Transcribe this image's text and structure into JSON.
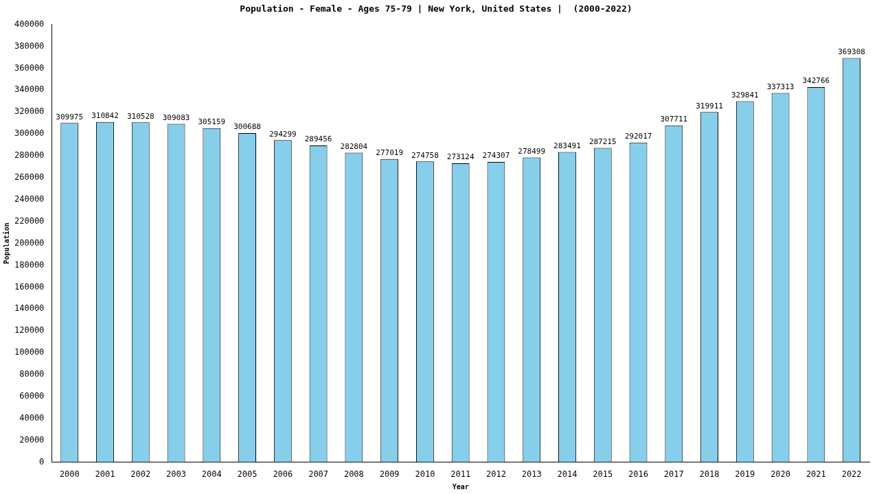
{
  "chart_data": {
    "type": "bar",
    "title": "Population - Female - Ages 75-79 | New York, United States |  (2000-2022)",
    "x_label": "Year",
    "y_label": "Population",
    "categories": [
      "2000",
      "2001",
      "2002",
      "2003",
      "2004",
      "2005",
      "2006",
      "2007",
      "2008",
      "2009",
      "2010",
      "2011",
      "2012",
      "2013",
      "2014",
      "2015",
      "2016",
      "2017",
      "2018",
      "2019",
      "2020",
      "2021",
      "2022"
    ],
    "values": [
      309975,
      310842,
      310528,
      309083,
      305159,
      300688,
      294299,
      289456,
      282804,
      277019,
      274758,
      273124,
      274307,
      278499,
      283491,
      287215,
      292017,
      307711,
      319911,
      329841,
      337313,
      342766,
      369308
    ],
    "color": "#87ceeb",
    "ylim": [
      0,
      400000
    ],
    "yticks": [
      0,
      20000,
      40000,
      60000,
      80000,
      100000,
      120000,
      140000,
      160000,
      180000,
      200000,
      220000,
      240000,
      260000,
      280000,
      300000,
      320000,
      340000,
      360000,
      380000,
      400000
    ],
    "grid": false,
    "data_labels": true
  }
}
